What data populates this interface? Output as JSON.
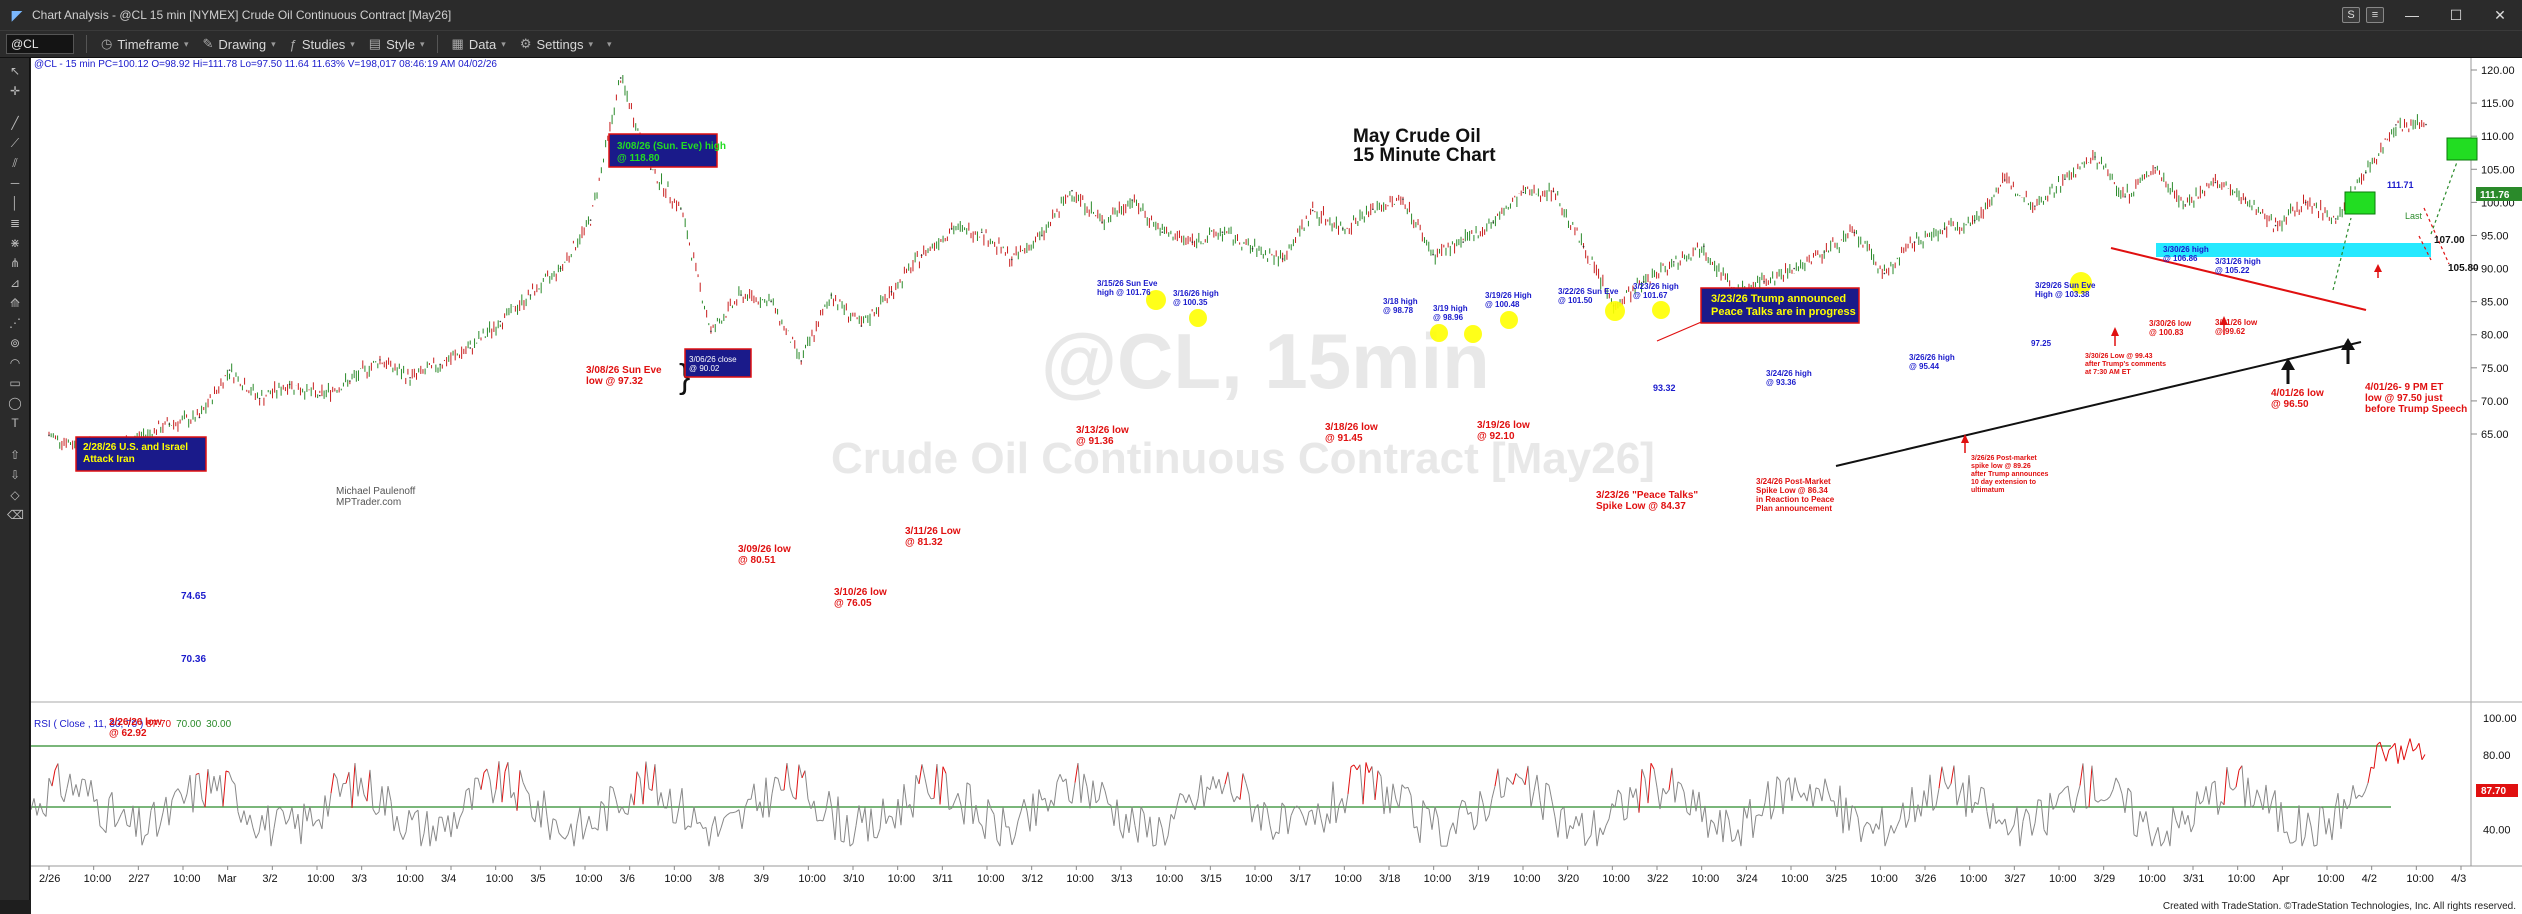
{
  "window": {
    "title": "Chart Analysis - @CL 15 min [NYMEX] Crude Oil Continuous Contract [May26]",
    "btn_s": "S",
    "btn_menu": "≡",
    "minimize": "—",
    "maximize": "☐",
    "close": "✕"
  },
  "toolbar": {
    "symbol": "@CL",
    "timeframe": "Timeframe",
    "drawing": "Drawing",
    "studies": "Studies",
    "style": "Style",
    "data": "Data",
    "settings": "Settings"
  },
  "chart": {
    "header": "@CL - 15 min  PC=100.12  O=98.92  Hi=111.78  Lo=97.50  11.64  11.63%  V=198,017  08:46:19 AM  04/02/26",
    "title_line1": "May Crude Oil",
    "title_line2": "15 Minute Chart",
    "watermark_symbol": "@CL, 15min",
    "watermark_name": "Crude Oil Continuous Contract [May26]",
    "author_line1": "Michael Paulenoff",
    "author_line2": "MPTrader.com",
    "last_price": "111.76",
    "last_price_high": "111.71",
    "level_107": "107.00",
    "level_10580": "105.80",
    "last_label": "Last",
    "rsi_label": "RSI ( Close , 11, 30, 70 ) ",
    "rsi_value": "87.70",
    "rsi_overbought": "70.00",
    "rsi_oversold": "30.00",
    "rsi_last": "87.70",
    "color_up": "#2a8a2a",
    "color_down": "#c81e1e",
    "color_annotation_red": "#e01010",
    "color_annotation_blue": "#1a1acc",
    "color_channel": "#00e5ff"
  },
  "annotations": {
    "a_0308_high": "3/08/26 (Sun. Eve) high\n@ 118.80",
    "a_0228": "2/28/26 U.S. and Israel\nAttack Iran",
    "a_7465": "74.65",
    "a_7036": "70.36",
    "a_0226": "2/26/26 low\n@ 62.92",
    "a_0308_low": "3/08/26 Sun Eve\nlow @ 97.32",
    "a_0306": "3/06/26 close\n@ 90.02",
    "a_0309": "3/09/26 low\n@ 80.51",
    "a_0310": "3/10/26 low\n@ 76.05",
    "a_0311": "3/11/26 Low\n@ 81.32",
    "a_0313": "3/13/26 low\n@ 91.36",
    "a_0315": "3/15/26 Sun Eve\nhigh @ 101.76",
    "a_0316": "3/16/26 high\n@ 100.35",
    "a_0318h": "3/18 high\n@ 98.78",
    "a_0319h": "3/19 high\n@ 98.96",
    "a_0319H": "3/19/26 High\n@ 100.48",
    "a_0318l": "3/18/26 low\n@ 91.45",
    "a_0319l": "3/19/26 low\n@ 92.10",
    "a_0322": "3/22/26 Sun Eve\n@ 101.50",
    "a_0323h": "3/23/26 high\n@ 101.67",
    "a_0323box": "3/23/26 Trump announced\nPeace Talks are in progress",
    "a_9332": "93.32",
    "a_0323l": "3/23/26 \"Peace Talks\"\nSpike Low @ 84.37",
    "a_0324h": "3/24/26 high\n@ 93.36",
    "a_0324pm": "3/24/26 Post-Market\nSpike Low @ 86.34\nin Reaction to Peace\nPlan announcement",
    "a_0326h": "3/26/26 high\n@ 95.44",
    "a_0326pm": "3/26/26 Post-market\nspike low @ 89.26\nafter Trump announces\n10 day extension to\nultimatum",
    "a_9725": "97.25",
    "a_0329": "3/29/26 Sun Eve\nHigh @ 103.38",
    "a_0330l": "3/30/26 Low @ 99.43\nafter Trump's comments\nat 7:30 AM ET",
    "a_0330h": "3/30/26 high\n@ 106.86",
    "a_0330low": "3/30/26 low\n@ 100.83",
    "a_0331h": "3/31/26 high\n@ 105.22",
    "a_0331l": "3/31/26 low\n@ 99.62",
    "a_0401l": "4/01/26 low\n@ 96.50",
    "a_0401pm": "4/01/26- 9 PM ET\nlow @ 97.50 just\nbefore Trump Speech"
  },
  "chart_data": {
    "type": "line",
    "title": "May Crude Oil 15 Minute Chart",
    "x_dates": [
      "2/26",
      "2/27",
      "Mar",
      "3/2",
      "3/3",
      "3/4",
      "3/5",
      "3/6",
      "3/8",
      "3/9",
      "3/10",
      "3/11",
      "3/12",
      "3/13",
      "3/15",
      "3/16",
      "3/17",
      "3/18",
      "3/19",
      "3/20",
      "3/22",
      "3/23",
      "3/24",
      "3/25",
      "3/26",
      "3/27",
      "3/29",
      "3/30",
      "3/31",
      "Apr",
      "4/1",
      "4/2",
      "4/3"
    ],
    "x_axis_labels": [
      "2/26",
      "10:00",
      "2/27",
      "10:00",
      "Mar",
      "3/2",
      "10:00",
      "3/3",
      "10:00",
      "3/4",
      "10:00",
      "3/5",
      "10:00",
      "3/6",
      "10:00",
      "3/8",
      "3/9",
      "10:00",
      "3/10",
      "10:00",
      "3/11",
      "10:00",
      "3/12",
      "10:00",
      "3/13",
      "10:00",
      "3/15",
      "10:00",
      "3/17",
      "10:00",
      "3/18",
      "10:00",
      "3/19",
      "10:00",
      "3/20",
      "10:00",
      "3/22",
      "10:00",
      "3/24",
      "10:00",
      "3/25",
      "10:00",
      "3/26",
      "10:00",
      "3/27",
      "10:00",
      "3/29",
      "10:00",
      "3/31",
      "10:00",
      "Apr",
      "10:00",
      "4/2",
      "10:00",
      "4/3"
    ],
    "y_ticks": [
      65.0,
      70.0,
      75.0,
      80.0,
      85.0,
      90.0,
      95.0,
      100.0,
      105.0,
      110.0,
      115.0,
      120.0
    ],
    "ylim": [
      62.0,
      121.5
    ],
    "rsi_ticks": [
      40.0,
      60.0,
      80.0,
      100.0
    ],
    "rsi_ylim": [
      30,
      100
    ],
    "series": [
      {
        "name": "@CL 15 min",
        "points": [
          [
            "2/26",
            64.8
          ],
          [
            "2/26 10:00",
            63.2
          ],
          [
            "2/26 low",
            62.92
          ],
          [
            "2/27",
            64.5
          ],
          [
            "2/27 10:00",
            66.5
          ],
          [
            "2/27 late",
            67.5
          ],
          [
            "Mar",
            74.65
          ],
          [
            "3/2",
            70.36
          ],
          [
            "3/2 10:00",
            72.5
          ],
          [
            "3/3",
            70.8
          ],
          [
            "3/3 10:00",
            73.0
          ],
          [
            "3/4",
            76.2
          ],
          [
            "3/4 10:00",
            73.5
          ],
          [
            "3/5",
            75.5
          ],
          [
            "3/5 10:00",
            78.0
          ],
          [
            "3/6",
            82.0
          ],
          [
            "3/6 10:00",
            86.0
          ],
          [
            "3/6 close",
            90.02
          ],
          [
            "3/8 low",
            97.32
          ],
          [
            "3/8 high",
            118.8
          ],
          [
            "3/8 late",
            105.0
          ],
          [
            "3/9",
            99.0
          ],
          [
            "3/9 low",
            80.51
          ],
          [
            "3/9 10:00",
            86.0
          ],
          [
            "3/10",
            85.0
          ],
          [
            "3/10 low",
            76.05
          ],
          [
            "3/10 10:00",
            86.0
          ],
          [
            "3/11 low",
            81.32
          ],
          [
            "3/11 10:00",
            86.5
          ],
          [
            "3/12",
            92.0
          ],
          [
            "3/12 10:00",
            96.0
          ],
          [
            "3/13",
            95.5
          ],
          [
            "3/13 low",
            91.36
          ],
          [
            "3/13 10:00",
            95.0
          ],
          [
            "3/15 high",
            101.76
          ],
          [
            "3/16",
            97.0
          ],
          [
            "3/16 high",
            100.35
          ],
          [
            "3/16 10:00",
            95.5
          ],
          [
            "3/17",
            94.0
          ],
          [
            "3/17 10:00",
            95.5
          ],
          [
            "3/18",
            93.0
          ],
          [
            "3/18 low",
            91.45
          ],
          [
            "3/18 high",
            98.78
          ],
          [
            "3/19",
            96.0
          ],
          [
            "3/19 high",
            98.96
          ],
          [
            "3/19 High",
            100.48
          ],
          [
            "3/19 low",
            92.1
          ],
          [
            "3/20",
            94.0
          ],
          [
            "3/20 10:00",
            97.0
          ],
          [
            "3/22 high",
            101.5
          ],
          [
            "3/23 high",
            101.67
          ],
          [
            "3/23",
            93.32
          ],
          [
            "3/23 low",
            84.37
          ],
          [
            "3/23 late",
            88.0
          ],
          [
            "3/24",
            91.0
          ],
          [
            "3/24 high",
            93.36
          ],
          [
            "3/24 pm low",
            86.34
          ],
          [
            "3/25",
            88.0
          ],
          [
            "3/25 10:00",
            90.0
          ],
          [
            "3/26",
            92.5
          ],
          [
            "3/26 high",
            95.44
          ],
          [
            "3/26 pm low",
            89.26
          ],
          [
            "3/27",
            94.0
          ],
          [
            "3/27 10:00",
            96.0
          ],
          [
            "3/27 late",
            97.25
          ],
          [
            "3/29 high",
            103.38
          ],
          [
            "3/30 low",
            99.43
          ],
          [
            "3/30 10:00",
            103.5
          ],
          [
            "3/30 high",
            106.86
          ],
          [
            "3/30 low2",
            100.83
          ],
          [
            "3/31 high",
            105.22
          ],
          [
            "3/31 low",
            99.62
          ],
          [
            "3/31 10:00",
            103.0
          ],
          [
            "Apr",
            100.5
          ],
          [
            "4/1 low",
            96.5
          ],
          [
            "4/1 10:00",
            100.0
          ],
          [
            "4/1 pm low",
            97.5
          ],
          [
            "4/2",
            104.5
          ],
          [
            "4/2 high",
            111.71
          ],
          [
            "4/2 last",
            111.76
          ]
        ]
      }
    ]
  }
}
